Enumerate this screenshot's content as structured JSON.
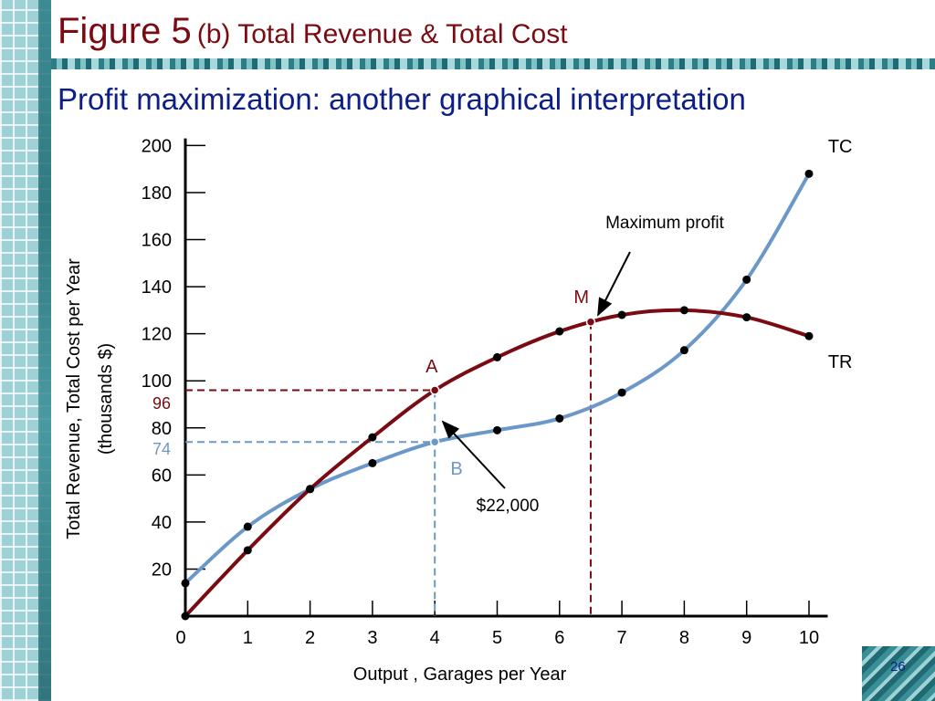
{
  "slide": {
    "title_main": "Figure 5",
    "title_sub": "(b) Total Revenue & Total Cost",
    "subtitle": "Profit maximization: another graphical interpretation",
    "page_number": "26"
  },
  "colors": {
    "tr": "#7a0b12",
    "tc": "#6b98c9",
    "title": "#7a0b12",
    "subtitle": "#0b1f86",
    "axis": "#000000"
  },
  "chart_data": {
    "type": "line",
    "xlabel": "Output , Garages per Year",
    "ylabel_line1": "Total Revenue, Total Cost per Year",
    "ylabel_line2": "(thousands $)",
    "xlim": [
      0,
      10
    ],
    "ylim": [
      0,
      200
    ],
    "x_ticks": [
      0,
      1,
      2,
      3,
      4,
      5,
      6,
      7,
      8,
      9,
      10
    ],
    "y_ticks": [
      20,
      40,
      60,
      80,
      100,
      120,
      140,
      160,
      180,
      200
    ],
    "grid": false,
    "series": [
      {
        "name": "TC",
        "x": [
          0,
          1,
          2,
          3,
          4,
          5,
          6,
          7,
          8,
          9,
          10
        ],
        "values": [
          14,
          38,
          54,
          65,
          74,
          79,
          84,
          95,
          113,
          143,
          188
        ]
      },
      {
        "name": "TR",
        "x": [
          0,
          1,
          2,
          3,
          4,
          5,
          6,
          7,
          8,
          9,
          10
        ],
        "values": [
          0,
          28,
          54,
          76,
          96,
          110,
          121,
          128,
          130,
          127,
          119
        ]
      }
    ],
    "annotations": {
      "point_a": {
        "label": "A",
        "x": 4,
        "y": 96
      },
      "point_b": {
        "label": "B",
        "x": 4,
        "y": 74
      },
      "point_m": {
        "label": "M",
        "x": 6.5,
        "y": 125
      },
      "ref_96": "96",
      "ref_74": "74",
      "max_profit_label": "Maximum profit",
      "gap_label": "$22,000"
    }
  }
}
